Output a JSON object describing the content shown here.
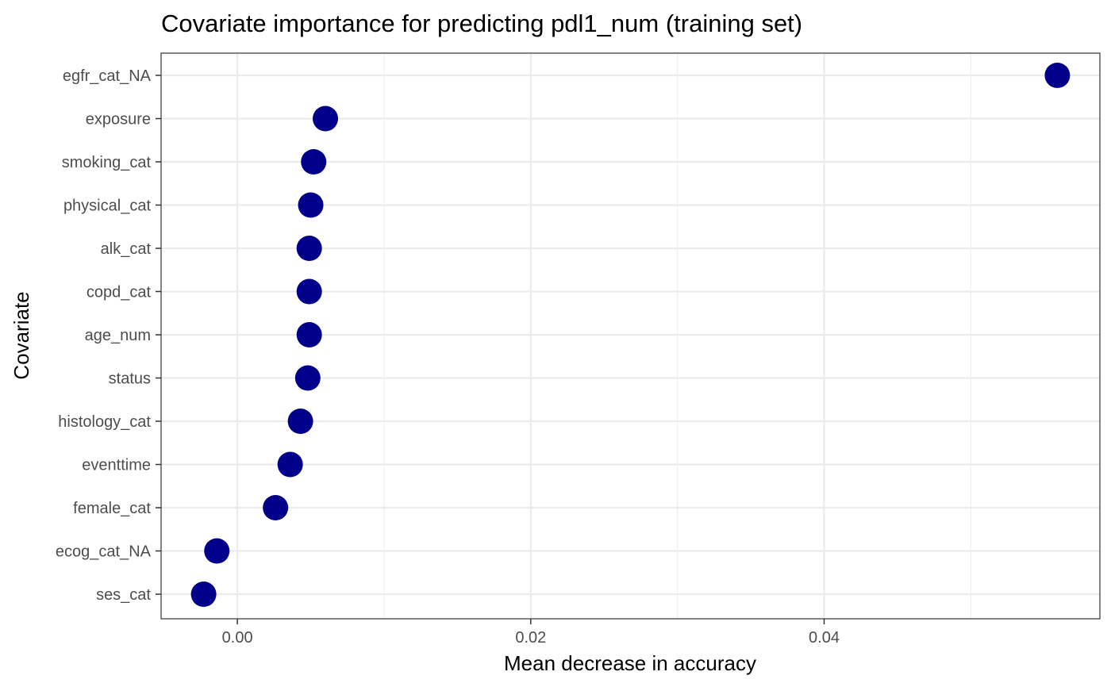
{
  "chart_data": {
    "type": "scatter",
    "title": "Covariate importance for predicting pdl1_num (training set)",
    "xlabel": "Mean decrease in accuracy",
    "ylabel": "Covariate",
    "xlim": [
      -0.0052,
      0.0588
    ],
    "xticks": [
      0.0,
      0.02,
      0.04
    ],
    "xtick_labels": [
      "0.00",
      "0.02",
      "0.04"
    ],
    "grid": true,
    "point_color": "#00008B",
    "categories": [
      "egfr_cat_NA",
      "exposure",
      "smoking_cat",
      "physical_cat",
      "alk_cat",
      "copd_cat",
      "age_num",
      "status",
      "histology_cat",
      "eventtime",
      "female_cat",
      "ecog_cat_NA",
      "ses_cat"
    ],
    "values": [
      0.0559,
      0.006,
      0.0052,
      0.005,
      0.0049,
      0.0049,
      0.0049,
      0.0048,
      0.0043,
      0.0036,
      0.0026,
      -0.0014,
      -0.0023
    ]
  }
}
